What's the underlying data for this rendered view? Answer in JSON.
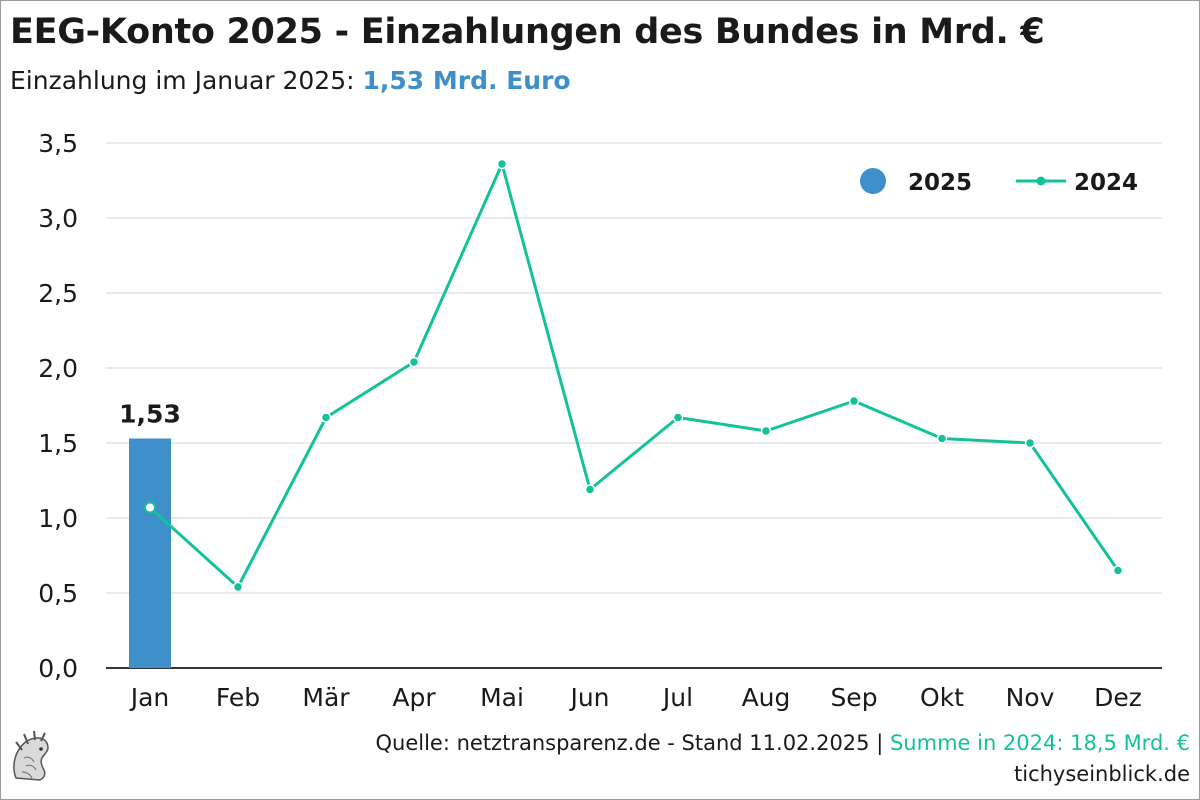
{
  "header": {
    "title": "EEG-Konto 2025 - Einzahlungen des Bundes in Mrd. €",
    "subtitle_prefix": "Einzahlung im Januar 2025: ",
    "subtitle_value": "1,53 Mrd. Euro"
  },
  "footer": {
    "source_text": "Quelle: netztransparenz.de - Stand 11.02.2025 | ",
    "sum_text": "Summe in 2024: 18,5 Mrd. €",
    "website": "tichyseinblick.de"
  },
  "colors": {
    "bar_2025": "#3f8fca",
    "line_2024": "#13c29a",
    "grid": "#e3e3e3",
    "axis": "#333333",
    "text": "#1a1a1a"
  },
  "chart_data": {
    "type": "bar",
    "categories": [
      "Jan",
      "Feb",
      "Mär",
      "Apr",
      "Mai",
      "Jun",
      "Jul",
      "Aug",
      "Sep",
      "Okt",
      "Nov",
      "Dez"
    ],
    "series": [
      {
        "name": "2025",
        "type": "bar",
        "values": [
          1.53,
          null,
          null,
          null,
          null,
          null,
          null,
          null,
          null,
          null,
          null,
          null
        ]
      },
      {
        "name": "2024",
        "type": "line",
        "values": [
          1.07,
          0.54,
          1.67,
          2.04,
          3.36,
          1.19,
          1.67,
          1.58,
          1.78,
          1.53,
          1.5,
          0.65
        ]
      }
    ],
    "data_labels": [
      {
        "category": "Jan",
        "series": "2025",
        "text": "1,53"
      }
    ],
    "y_ticks": [
      "0,0",
      "0,5",
      "1,0",
      "1,5",
      "2,0",
      "2,5",
      "3,0",
      "3,5"
    ],
    "ylim": [
      0,
      3.5
    ],
    "grid": true,
    "legend_position": "top-right"
  }
}
